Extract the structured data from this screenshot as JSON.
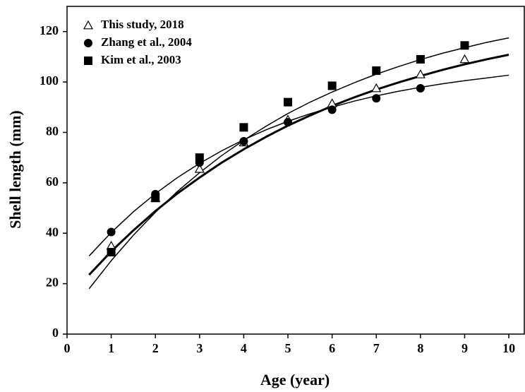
{
  "chart_data": {
    "type": "scatter",
    "x_label": "Age (year)",
    "y_label": "Shell length (mm)",
    "xlim": [
      0,
      10.35
    ],
    "ylim": [
      0,
      130
    ],
    "xticks": [
      0,
      1,
      2,
      3,
      4,
      5,
      6,
      7,
      8,
      9,
      10
    ],
    "yticks": [
      0,
      20,
      40,
      60,
      80,
      100,
      120
    ],
    "legend": "upper left",
    "series": [
      {
        "name": "This study, 2018",
        "marker": "triangle",
        "color": "#000000",
        "x": [
          1,
          2,
          3,
          4,
          5,
          6,
          7,
          8,
          9
        ],
        "values": [
          35,
          54,
          65.5,
          76,
          85,
          91.5,
          97.5,
          103,
          109
        ]
      },
      {
        "name": "Zhang et al., 2004",
        "marker": "circle",
        "color": "#000000",
        "x": [
          1,
          2,
          3,
          4,
          5,
          6,
          7,
          8
        ],
        "values": [
          40.5,
          55.5,
          68,
          76.5,
          84,
          89,
          93.5,
          97.5
        ]
      },
      {
        "name": "Kim et al., 2003",
        "marker": "square",
        "color": "#000000",
        "x": [
          1,
          2,
          3,
          4,
          5,
          6,
          7,
          8,
          9
        ],
        "values": [
          32.5,
          54,
          70,
          82,
          92,
          98.5,
          104.5,
          109,
          114.5
        ]
      }
    ],
    "curve_x": [
      0.5,
      1,
      1.5,
      2,
      2.5,
      3,
      3.5,
      4,
      4.5,
      5,
      5.5,
      6,
      6.5,
      7,
      7.5,
      8,
      8.5,
      9,
      9.5,
      10
    ],
    "curves": [
      {
        "color": "#000000",
        "width": 3,
        "values": [
          23.5,
          32.8,
          41.1,
          48.8,
          55.8,
          62.1,
          68.0,
          73.3,
          78.2,
          82.7,
          86.7,
          90.5,
          93.9,
          97.0,
          99.8,
          102.4,
          104.8,
          107.0,
          109.0,
          110.8
        ]
      },
      {
        "color": "#000000",
        "width": 1.5,
        "values": [
          31.0,
          40.3,
          48.5,
          55.7,
          62.1,
          67.7,
          72.7,
          77.1,
          81.0,
          84.4,
          87.4,
          90.0,
          92.4,
          94.5,
          96.3,
          97.9,
          99.3,
          100.5,
          101.6,
          102.7
        ]
      },
      {
        "color": "#000000",
        "width": 1.5,
        "values": [
          18.0,
          29.1,
          39.2,
          48.3,
          56.6,
          64.0,
          70.8,
          76.9,
          82.4,
          87.5,
          92.0,
          96.0,
          99.7,
          103.1,
          106.1,
          108.9,
          111.4,
          113.6,
          115.7,
          117.5
        ]
      }
    ]
  }
}
